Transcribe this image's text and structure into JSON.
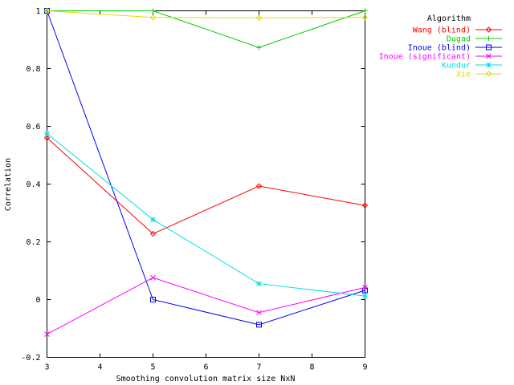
{
  "chart_data": {
    "type": "line",
    "xlabel": "Smoothing convolution matrix size NxN",
    "ylabel": "Correlation",
    "xlim": [
      3,
      9
    ],
    "ylim": [
      -0.2,
      1
    ],
    "x_ticks": [
      3,
      4,
      5,
      6,
      7,
      8,
      9
    ],
    "y_ticks": [
      -0.2,
      0,
      0.2,
      0.4,
      0.6,
      0.8,
      1
    ],
    "y_tick_labels": [
      "-0.2",
      "0",
      "0.2",
      "0.4",
      "0.6",
      "0.8",
      "1"
    ],
    "grid": false,
    "legend_title": "Algorithm",
    "legend_position": "top-right, outside plot",
    "x": [
      3,
      5,
      7,
      9
    ],
    "series": [
      {
        "name": "Wang (blind)",
        "color": "#ff0000",
        "marker": "diamond",
        "values": [
          0.56,
          0.228,
          0.393,
          0.326
        ]
      },
      {
        "name": "Dugad",
        "color": "#00cc00",
        "marker": "plus",
        "values": [
          1.0,
          1.0,
          0.873,
          1.0
        ]
      },
      {
        "name": "Inoue (blind)",
        "color": "#0000ff",
        "marker": "square",
        "values": [
          1.0,
          0.0,
          -0.087,
          0.032
        ]
      },
      {
        "name": "Inoue (significant)",
        "color": "#ff00ff",
        "marker": "x",
        "values": [
          -0.12,
          0.076,
          -0.045,
          0.042
        ]
      },
      {
        "name": "Kundur",
        "color": "#00e0e0",
        "marker": "star",
        "values": [
          0.575,
          0.277,
          0.055,
          0.012
        ]
      },
      {
        "name": "Xie",
        "color": "#dddd00",
        "marker": "diamond",
        "values": [
          1.0,
          0.977,
          0.976,
          0.977
        ]
      }
    ]
  }
}
